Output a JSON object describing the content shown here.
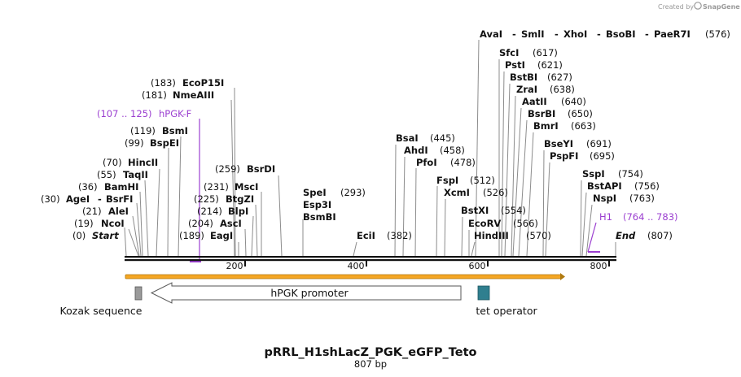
{
  "credit": {
    "prefix": "Created by",
    "brand": "SnapGene"
  },
  "title": "pRRL_H1shLacZ_PGK_eGFP_Teto",
  "subtitle": "807 bp",
  "sequence_length": 807,
  "ticks": [
    "200",
    "400",
    "600",
    "800"
  ],
  "ends": {
    "start_pos": "(0)",
    "start_label": "Start",
    "end_label": "End",
    "end_pos": "(807)"
  },
  "labels": {
    "ncoi": {
      "pos": "(19)",
      "name": "NcoI"
    },
    "alei": {
      "pos": "(21)",
      "name": "AleI"
    },
    "agei": {
      "pos": "(30)",
      "name": "AgeI",
      "sep": "-",
      "name2": "BsrFI"
    },
    "bamhi": {
      "pos": "(36)",
      "name": "BamHI"
    },
    "taqii": {
      "pos": "(55)",
      "name": "TaqII"
    },
    "hincii": {
      "pos": "(70)",
      "name": "HincII"
    },
    "bspei": {
      "pos": "(99)",
      "name": "BspEI"
    },
    "bsmi": {
      "pos": "(119)",
      "name": "BsmI"
    },
    "nmeaiii": {
      "pos": "(181)",
      "name": "NmeAIII"
    },
    "ecop15i": {
      "pos": "(183)",
      "name": "EcoP15I"
    },
    "eagi": {
      "pos": "(189)",
      "name": "EagI"
    },
    "asci": {
      "pos": "(204)",
      "name": "AscI"
    },
    "blpi": {
      "pos": "(214)",
      "name": "BlpI"
    },
    "btgzi": {
      "pos": "(225)",
      "name": "BtgZI"
    },
    "msci": {
      "pos": "(231)",
      "name": "MscI"
    },
    "bsrdi": {
      "pos": "(259)",
      "name": "BsrDI"
    },
    "spei": {
      "name": "SpeI",
      "pos": "(293)"
    },
    "esp3i": {
      "name": "Esp3I"
    },
    "bsmbi": {
      "name": "BsmBI"
    },
    "ecii": {
      "name": "EciI",
      "pos": "(382)"
    },
    "bsai": {
      "name": "BsaI",
      "pos": "(445)"
    },
    "ahdi": {
      "name": "AhdI",
      "pos": "(458)"
    },
    "pfoi": {
      "name": "PfoI",
      "pos": "(478)"
    },
    "fspi": {
      "name": "FspI",
      "pos": "(512)"
    },
    "xcmi": {
      "name": "XcmI",
      "pos": "(526)"
    },
    "bstxi": {
      "name": "BstXI",
      "pos": "(554)"
    },
    "ecorv": {
      "name": "EcoRV",
      "pos": "(566)"
    },
    "hindiii": {
      "name": "HindIII",
      "pos": "(570)"
    },
    "ava_group": {
      "n1": "AvaI",
      "n2": "SmlI",
      "n3": "XhoI",
      "n4": "BsoBI",
      "n5": "PaeR7I",
      "sep": "-",
      "pos": "(576)"
    },
    "sfci": {
      "name": "SfcI",
      "pos": "(617)"
    },
    "psti": {
      "name": "PstI",
      "pos": "(621)"
    },
    "bstbi": {
      "name": "BstBI",
      "pos": "(627)"
    },
    "zrai": {
      "name": "ZraI",
      "pos": "(638)"
    },
    "aatii": {
      "name": "AatII",
      "pos": "(640)"
    },
    "bsrbi": {
      "name": "BsrBI",
      "pos": "(650)"
    },
    "bmri": {
      "name": "BmrI",
      "pos": "(663)"
    },
    "bseyi": {
      "name": "BseYI",
      "pos": "(691)"
    },
    "pspfi": {
      "name": "PspFI",
      "pos": "(695)"
    },
    "sspi": {
      "name": "SspI",
      "pos": "(754)"
    },
    "bstapi": {
      "name": "BstAPI",
      "pos": "(756)"
    },
    "nspi": {
      "name": "NspI",
      "pos": "(763)"
    }
  },
  "primers": {
    "hpgk_f": {
      "range": "(107 .. 125)",
      "name": "hPGK-F"
    },
    "h1": {
      "name": "H1",
      "range": "(764 .. 783)"
    }
  },
  "features": {
    "kozak": "Kozak sequence",
    "hpgk": "hPGK promoter",
    "tet": "tet operator"
  },
  "colors": {
    "primer": "#9b3fd0",
    "orf_fill": "#f5a623",
    "kozak_fill": "#9a9a9a",
    "tet_fill": "#2f7f8f",
    "line": "#8a8a8a"
  }
}
